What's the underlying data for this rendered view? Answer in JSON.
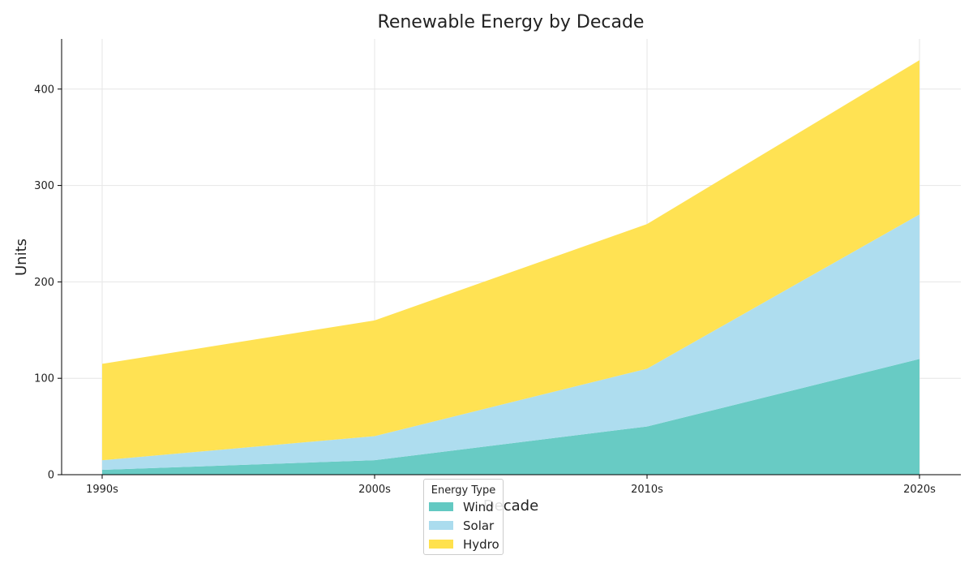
{
  "chart_data": {
    "type": "area",
    "stacked": true,
    "title": "Renewable Energy by Decade",
    "xlabel": "Decade",
    "ylabel": "Units",
    "categories": [
      "1990s",
      "2000s",
      "2010s",
      "2020s"
    ],
    "series": [
      {
        "name": "Wind",
        "values": [
          5,
          15,
          50,
          120
        ],
        "color": "#63c9c2"
      },
      {
        "name": "Solar",
        "values": [
          10,
          25,
          60,
          150
        ],
        "color": "#abdcee"
      },
      {
        "name": "Hydro",
        "values": [
          100,
          120,
          150,
          160
        ],
        "color": "#ffe14d"
      }
    ],
    "ylim": [
      0,
      452
    ],
    "yticks": [
      0,
      100,
      200,
      300,
      400
    ],
    "grid": true,
    "legend": {
      "title": "Energy Type",
      "placement": "bottom-center"
    }
  }
}
